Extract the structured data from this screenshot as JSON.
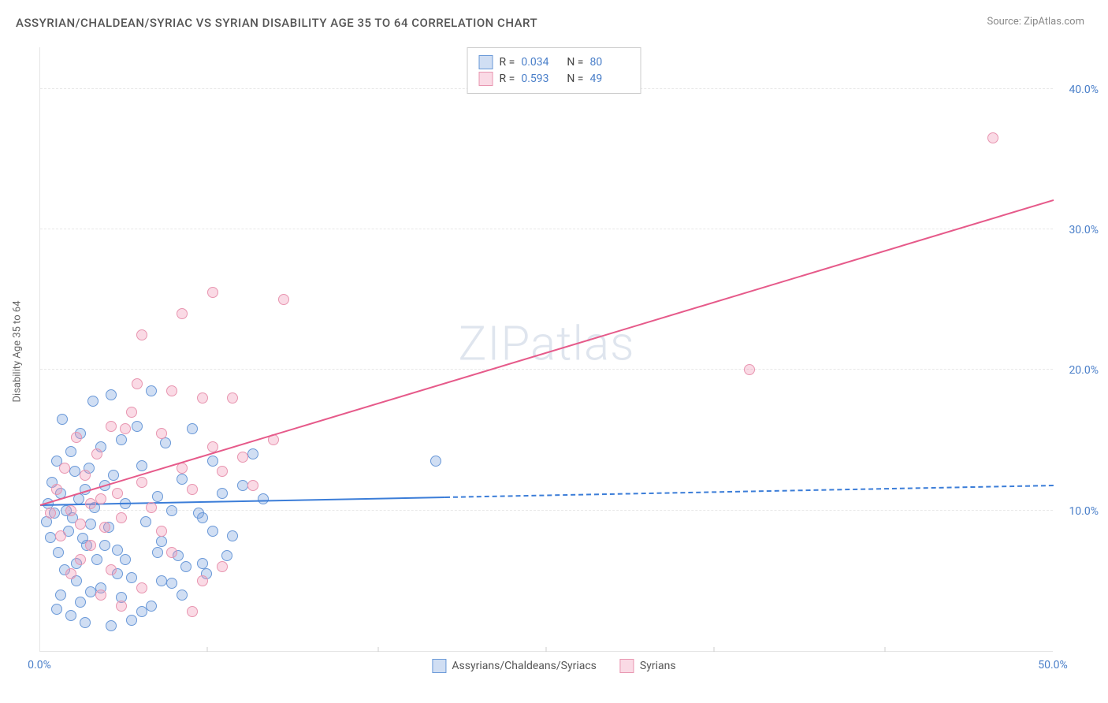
{
  "title": "ASSYRIAN/CHALDEAN/SYRIAC VS SYRIAN DISABILITY AGE 35 TO 64 CORRELATION CHART",
  "source": "Source: ZipAtlas.com",
  "y_label": "Disability Age 35 to 64",
  "watermark": "ZIPatlas",
  "chart": {
    "type": "scatter",
    "xlim": [
      0,
      50
    ],
    "ylim": [
      0,
      43
    ],
    "x_ticks": [
      0,
      50
    ],
    "x_tick_labels": [
      "0.0%",
      "50.0%"
    ],
    "y_ticks": [
      10,
      20,
      30,
      40
    ],
    "y_tick_labels": [
      "10.0%",
      "20.0%",
      "30.0%",
      "40.0%"
    ],
    "x_tick_marks": [
      8.3,
      16.7,
      25,
      33.3,
      41.7
    ],
    "background_color": "#ffffff",
    "grid_color": "#e8e8e8",
    "axis_color": "#e5e5e5",
    "point_radius": 7,
    "series": [
      {
        "name": "Assyrians/Chaldeans/Syriacs",
        "fill": "rgba(120,160,220,0.35)",
        "stroke": "#6a99d8",
        "trend_color": "#3b7dd8",
        "r": "0.034",
        "n": "80",
        "trend": {
          "x1": 0,
          "y1": 10.3,
          "x2": 50,
          "y2": 11.7,
          "solid_until": 20
        },
        "points": [
          [
            0.3,
            9.2
          ],
          [
            0.4,
            10.5
          ],
          [
            0.5,
            8.1
          ],
          [
            0.6,
            12.0
          ],
          [
            0.7,
            9.8
          ],
          [
            0.8,
            13.5
          ],
          [
            0.9,
            7.0
          ],
          [
            1.0,
            11.2
          ],
          [
            1.1,
            16.5
          ],
          [
            1.2,
            5.8
          ],
          [
            1.3,
            10.0
          ],
          [
            1.4,
            8.5
          ],
          [
            1.5,
            14.2
          ],
          [
            1.6,
            9.5
          ],
          [
            1.7,
            12.8
          ],
          [
            1.8,
            6.2
          ],
          [
            1.9,
            10.8
          ],
          [
            2.0,
            15.5
          ],
          [
            2.1,
            8.0
          ],
          [
            2.2,
            11.5
          ],
          [
            2.3,
            7.5
          ],
          [
            2.4,
            13.0
          ],
          [
            2.5,
            9.0
          ],
          [
            2.6,
            17.8
          ],
          [
            2.7,
            10.2
          ],
          [
            2.8,
            6.5
          ],
          [
            3.0,
            14.5
          ],
          [
            3.2,
            11.8
          ],
          [
            3.4,
            8.8
          ],
          [
            3.5,
            18.2
          ],
          [
            3.6,
            12.5
          ],
          [
            3.8,
            7.2
          ],
          [
            4.0,
            15.0
          ],
          [
            4.2,
            10.5
          ],
          [
            4.5,
            5.2
          ],
          [
            4.8,
            16.0
          ],
          [
            5.0,
            13.2
          ],
          [
            5.2,
            9.2
          ],
          [
            5.5,
            18.5
          ],
          [
            5.8,
            11.0
          ],
          [
            6.0,
            7.8
          ],
          [
            6.2,
            14.8
          ],
          [
            6.5,
            10.0
          ],
          [
            6.8,
            6.8
          ],
          [
            7.0,
            12.2
          ],
          [
            7.5,
            15.8
          ],
          [
            8.0,
            9.5
          ],
          [
            8.2,
            5.5
          ],
          [
            8.5,
            13.5
          ],
          [
            9.0,
            11.2
          ],
          [
            9.5,
            8.2
          ],
          [
            10.0,
            11.8
          ],
          [
            10.5,
            14.0
          ],
          [
            11.0,
            10.8
          ],
          [
            7.2,
            6.0
          ],
          [
            3.0,
            4.5
          ],
          [
            4.0,
            3.8
          ],
          [
            2.5,
            4.2
          ],
          [
            1.5,
            2.5
          ],
          [
            6.0,
            5.0
          ],
          [
            8.0,
            6.2
          ],
          [
            9.2,
            6.8
          ],
          [
            5.0,
            2.8
          ],
          [
            3.5,
            1.8
          ],
          [
            4.5,
            2.2
          ],
          [
            2.0,
            3.5
          ],
          [
            7.0,
            4.0
          ],
          [
            5.5,
            3.2
          ],
          [
            3.8,
            5.5
          ],
          [
            6.5,
            4.8
          ],
          [
            19.5,
            13.5
          ],
          [
            1.0,
            4.0
          ],
          [
            0.8,
            3.0
          ],
          [
            2.2,
            2.0
          ],
          [
            1.8,
            5.0
          ],
          [
            4.2,
            6.5
          ],
          [
            3.2,
            7.5
          ],
          [
            5.8,
            7.0
          ],
          [
            8.5,
            8.5
          ],
          [
            7.8,
            9.8
          ]
        ]
      },
      {
        "name": "Syrians",
        "fill": "rgba(240,150,180,0.35)",
        "stroke": "#e895b0",
        "trend_color": "#e65a8a",
        "r": "0.593",
        "n": "49",
        "trend": {
          "x1": 0,
          "y1": 10.3,
          "x2": 50,
          "y2": 32.0,
          "solid_until": 50
        },
        "points": [
          [
            0.5,
            9.8
          ],
          [
            0.8,
            11.5
          ],
          [
            1.0,
            8.2
          ],
          [
            1.2,
            13.0
          ],
          [
            1.5,
            10.0
          ],
          [
            1.8,
            15.2
          ],
          [
            2.0,
            9.0
          ],
          [
            2.2,
            12.5
          ],
          [
            2.5,
            7.5
          ],
          [
            2.8,
            14.0
          ],
          [
            3.0,
            10.8
          ],
          [
            3.2,
            8.8
          ],
          [
            3.5,
            16.0
          ],
          [
            3.8,
            11.2
          ],
          [
            4.0,
            9.5
          ],
          [
            4.5,
            17.0
          ],
          [
            5.0,
            12.0
          ],
          [
            5.5,
            10.2
          ],
          [
            6.0,
            15.5
          ],
          [
            6.5,
            18.5
          ],
          [
            7.0,
            13.0
          ],
          [
            7.5,
            11.5
          ],
          [
            8.0,
            18.0
          ],
          [
            8.5,
            14.5
          ],
          [
            9.0,
            12.8
          ],
          [
            10.0,
            13.8
          ],
          [
            10.5,
            11.8
          ],
          [
            11.5,
            15.0
          ],
          [
            7.0,
            24.0
          ],
          [
            8.5,
            25.5
          ],
          [
            12.0,
            25.0
          ],
          [
            5.0,
            22.5
          ],
          [
            35.0,
            20.0
          ],
          [
            47.0,
            36.5
          ],
          [
            2.0,
            6.5
          ],
          [
            3.5,
            5.8
          ],
          [
            5.0,
            4.5
          ],
          [
            6.5,
            7.0
          ],
          [
            8.0,
            5.0
          ],
          [
            4.0,
            3.2
          ],
          [
            7.5,
            2.8
          ],
          [
            9.0,
            6.0
          ],
          [
            3.0,
            4.0
          ],
          [
            1.5,
            5.5
          ],
          [
            4.8,
            19.0
          ],
          [
            9.5,
            18.0
          ],
          [
            6.0,
            8.5
          ],
          [
            2.5,
            10.5
          ],
          [
            4.2,
            15.8
          ]
        ]
      }
    ]
  },
  "rn_legend_label_r": "R =",
  "rn_legend_label_n": "N =",
  "value_color": "#4a7fc9",
  "label_color": "#555"
}
